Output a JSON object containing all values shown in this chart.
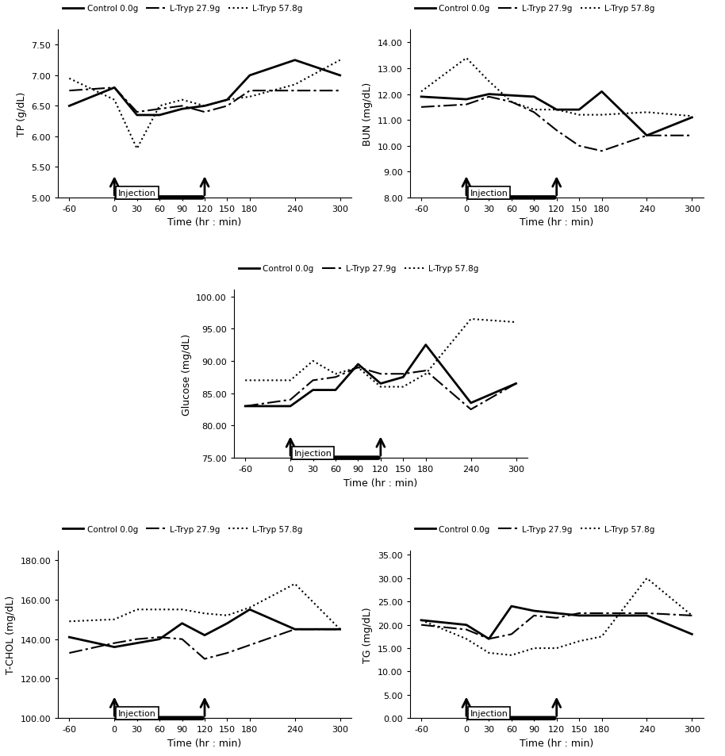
{
  "time_points": [
    -60,
    0,
    30,
    60,
    90,
    120,
    150,
    180,
    240,
    300
  ],
  "TP": {
    "ylabel": "TP (g/dL)",
    "ylim": [
      5.0,
      7.75
    ],
    "yticks": [
      5.0,
      5.5,
      6.0,
      6.5,
      7.0,
      7.5
    ],
    "ytick_labels": [
      "5.00",
      "5.50",
      "6.00",
      "6.50",
      "7.00",
      "7.50"
    ],
    "control": [
      6.5,
      6.8,
      6.35,
      6.35,
      6.45,
      6.5,
      6.6,
      7.0,
      7.25,
      7.0
    ],
    "low": [
      6.75,
      6.8,
      6.4,
      6.45,
      6.5,
      6.4,
      6.5,
      6.75,
      6.75,
      6.75
    ],
    "high": [
      6.95,
      6.6,
      5.8,
      6.5,
      6.6,
      6.5,
      6.6,
      6.65,
      6.85,
      7.25
    ]
  },
  "BUN": {
    "ylabel": "BUN (mg/dL)",
    "ylim": [
      8.0,
      14.5
    ],
    "yticks": [
      8.0,
      9.0,
      10.0,
      11.0,
      12.0,
      13.0,
      14.0
    ],
    "ytick_labels": [
      "8.00",
      "9.00",
      "10.00",
      "11.00",
      "12.00",
      "13.00",
      "14.00"
    ],
    "control": [
      11.9,
      11.8,
      12.0,
      11.95,
      11.9,
      11.4,
      11.4,
      12.1,
      10.4,
      11.1
    ],
    "low": [
      11.5,
      11.6,
      11.9,
      11.7,
      11.3,
      10.6,
      10.0,
      9.8,
      10.4,
      10.4
    ],
    "high": [
      12.1,
      13.4,
      12.5,
      11.7,
      11.4,
      11.4,
      11.2,
      11.2,
      11.3,
      11.15
    ]
  },
  "Glucose": {
    "ylabel": "Glucose (mg/dL)",
    "ylim": [
      75.0,
      101.0
    ],
    "yticks": [
      75.0,
      80.0,
      85.0,
      90.0,
      95.0,
      100.0
    ],
    "ytick_labels": [
      "75.00",
      "80.00",
      "85.00",
      "90.00",
      "95.00",
      "100.00"
    ],
    "control": [
      83.0,
      83.0,
      85.5,
      85.5,
      89.5,
      86.5,
      87.5,
      92.5,
      83.5,
      86.5
    ],
    "low": [
      83.0,
      84.0,
      87.0,
      87.5,
      89.0,
      88.0,
      88.0,
      88.5,
      82.5,
      86.5
    ],
    "high": [
      87.0,
      87.0,
      90.0,
      88.0,
      89.0,
      86.0,
      86.0,
      88.0,
      96.5,
      96.0
    ]
  },
  "TCHOL": {
    "ylabel": "T-CHOL (mg/dL)",
    "ylim": [
      100.0,
      185.0
    ],
    "yticks": [
      100.0,
      120.0,
      140.0,
      160.0,
      180.0
    ],
    "ytick_labels": [
      "100.00",
      "120.00",
      "140.00",
      "160.00",
      "180.00"
    ],
    "control": [
      141.0,
      136.0,
      138.0,
      140.0,
      148.0,
      142.0,
      148.0,
      155.0,
      145.0,
      145.0
    ],
    "low": [
      133.0,
      138.0,
      140.0,
      141.0,
      140.0,
      130.0,
      133.0,
      137.0,
      145.0,
      145.0
    ],
    "high": [
      149.0,
      150.0,
      155.0,
      155.0,
      155.0,
      153.0,
      152.0,
      156.0,
      168.0,
      145.0
    ]
  },
  "TG": {
    "ylabel": "TG (mg/dL)",
    "ylim": [
      0.0,
      36.0
    ],
    "yticks": [
      0.0,
      5.0,
      10.0,
      15.0,
      20.0,
      25.0,
      30.0,
      35.0
    ],
    "ytick_labels": [
      "0.00",
      "5.00",
      "10.00",
      "15.00",
      "20.00",
      "25.00",
      "30.00",
      "35.00"
    ],
    "control": [
      21.0,
      20.0,
      17.0,
      24.0,
      23.0,
      22.5,
      22.0,
      22.0,
      22.0,
      18.0
    ],
    "low": [
      20.0,
      19.0,
      17.0,
      18.0,
      22.0,
      21.5,
      22.5,
      22.5,
      22.5,
      22.0
    ],
    "high": [
      21.0,
      17.0,
      14.0,
      13.5,
      15.0,
      15.0,
      16.5,
      17.5,
      30.0,
      22.0
    ]
  },
  "legend_labels": [
    "Control 0.0g",
    "L-Tryp 27.9g",
    "L-Tryp 57.8g"
  ],
  "xlabel": "Time (hr : min)",
  "xticks": [
    -60,
    0,
    30,
    60,
    90,
    120,
    150,
    180,
    240,
    300
  ],
  "xlim": [
    -75,
    315
  ],
  "injection_x1": 0,
  "injection_x2": 120
}
